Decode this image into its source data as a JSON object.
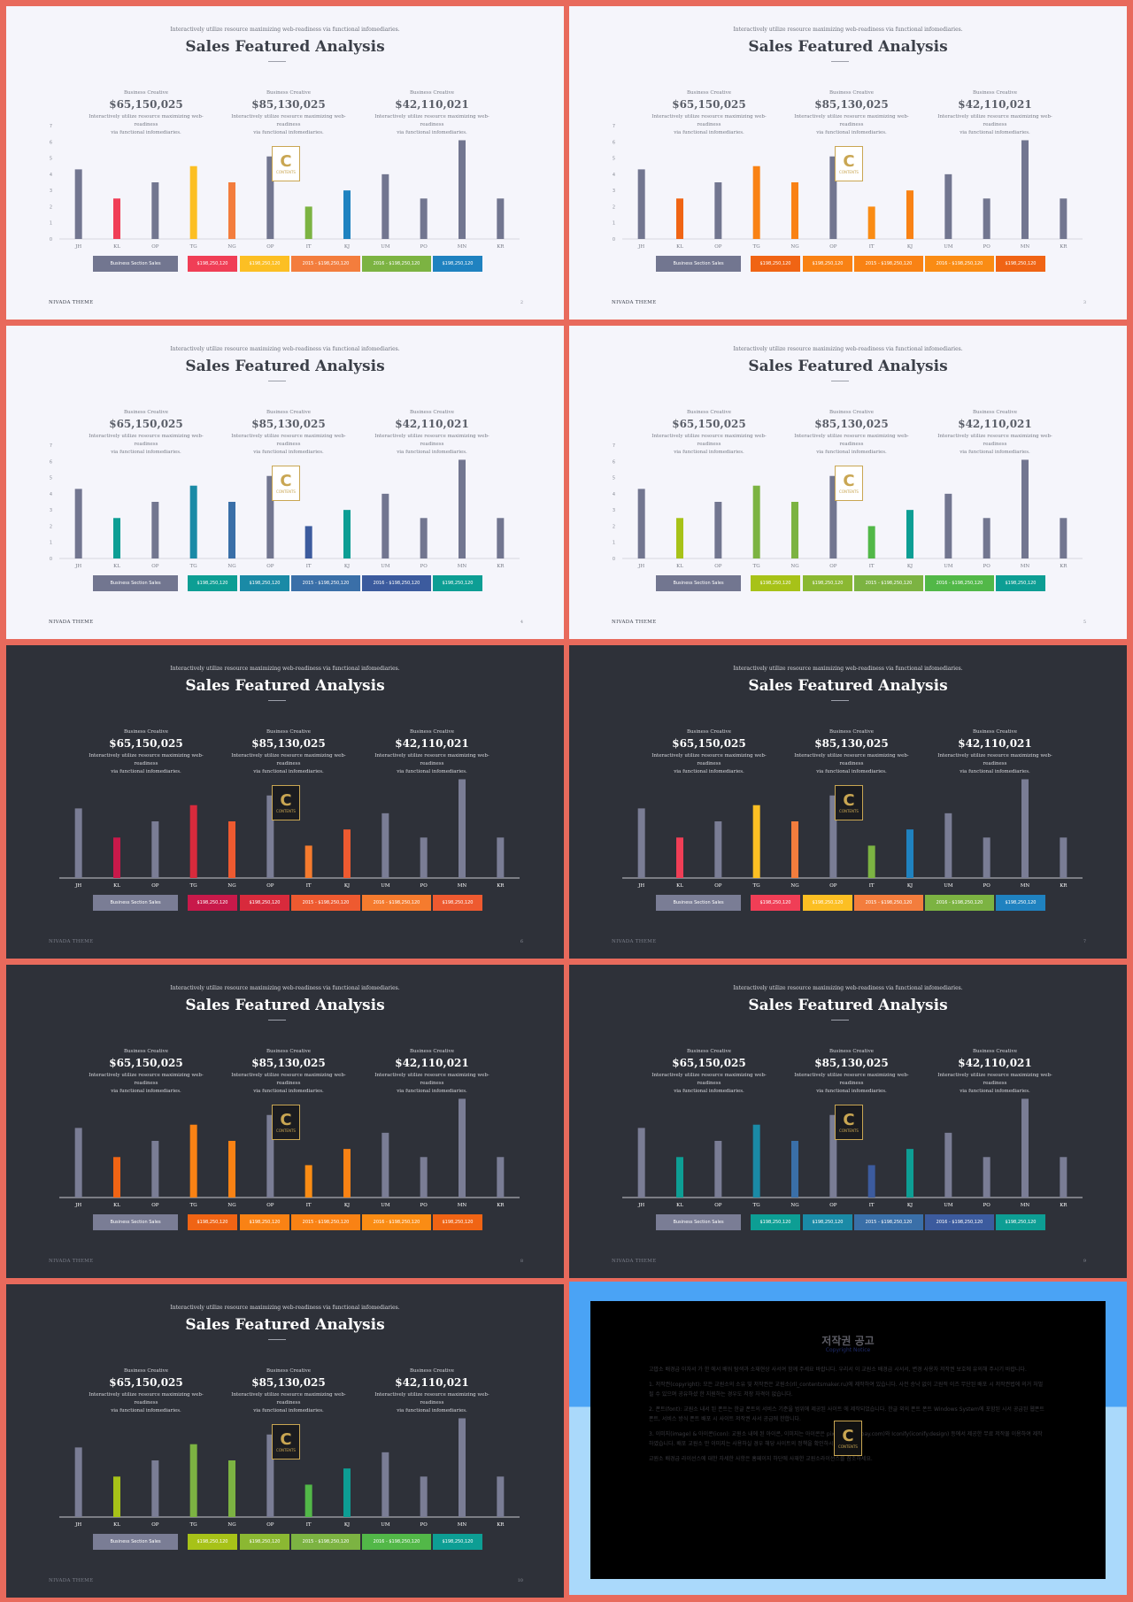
{
  "common": {
    "tagline": "Interactively utilize resource maximizing web-readiness via functional infomediaries.",
    "title": "Sales Featured Analysis",
    "stats": [
      {
        "label": "Business Creative",
        "value": "$65,150,025",
        "desc1": "Interactively utilize resource maximizing web-readiness",
        "desc2": "via functional infomediaries."
      },
      {
        "label": "Business Creative",
        "value": "$85,130,025",
        "desc1": "Interactively utilize resource maximizing web-readiness",
        "desc2": "via functional infomediaries."
      },
      {
        "label": "Business Creative",
        "value": "$42,110,021",
        "desc1": "Interactively utilize resource maximizing web-readiness",
        "desc2": "via functional infomediaries."
      }
    ],
    "legend": [
      "Business Section Sales",
      "$198,250,120",
      "$198,250,120",
      "2015 - $198,250,120",
      "2016 - $198,250,120",
      "$198,250,120"
    ],
    "footer": "NIVADA THEME",
    "logo_letter": "C",
    "logo_text": "CONTENTS"
  },
  "chart_data": {
    "type": "bar",
    "categories": [
      "JH",
      "KL",
      "OP",
      "TG",
      "NG",
      "OP",
      "IT",
      "KJ",
      "UM",
      "PO",
      "MN",
      "KR"
    ],
    "values": [
      4.3,
      2.5,
      3.5,
      4.5,
      3.5,
      5.1,
      2.0,
      3.0,
      4.0,
      2.5,
      6.1,
      2.5
    ],
    "yticks": [
      "0",
      "1",
      "2",
      "3",
      "4",
      "5",
      "6",
      "7"
    ],
    "ylim": [
      0,
      7
    ]
  },
  "slides": [
    {
      "theme": "light",
      "page": "2",
      "accents": [
        "#f03e56",
        "#fcbf23",
        "#f37d3d",
        "#7cb342",
        "#1f82c0"
      ],
      "legend_colors": [
        "#f03e56",
        "#fcbf23",
        "#f37d3d",
        "#7cb342",
        "#1f82c0"
      ]
    },
    {
      "theme": "light",
      "page": "3",
      "accents": [
        "#f06414",
        "#f98214",
        "#f98214",
        "#fa8c14",
        "#f98214"
      ],
      "legend_colors": [
        "#f06414",
        "#f98214",
        "#f98214",
        "#fa8c14",
        "#f06414"
      ]
    },
    {
      "theme": "light",
      "page": "4",
      "accents": [
        "#0d9e94",
        "#1a8aa6",
        "#3a6fa8",
        "#3c5b9e",
        "#0d9e94"
      ],
      "legend_colors": [
        "#0d9e94",
        "#1a8aa6",
        "#3a6fa8",
        "#3c5b9e",
        "#0d9e94"
      ]
    },
    {
      "theme": "light",
      "page": "5",
      "accents": [
        "#a7c218",
        "#7cb342",
        "#7cb342",
        "#52b848",
        "#0d9e94"
      ],
      "legend_colors": [
        "#a7c218",
        "#8bb832",
        "#7cb342",
        "#52b848",
        "#0d9e94"
      ]
    },
    {
      "theme": "dark",
      "page": "6",
      "accents": [
        "#c8194a",
        "#d82a3c",
        "#ee5a30",
        "#f57b2e",
        "#ee5a30"
      ],
      "legend_colors": [
        "#c8194a",
        "#d82a3c",
        "#ee5a30",
        "#f57b2e",
        "#ee5a30"
      ]
    },
    {
      "theme": "dark",
      "page": "7",
      "accents": [
        "#f03e56",
        "#fcbf23",
        "#f37d3d",
        "#7cb342",
        "#1f82c0"
      ],
      "legend_colors": [
        "#f03e56",
        "#fcbf23",
        "#f37d3d",
        "#7cb342",
        "#1f82c0"
      ]
    },
    {
      "theme": "dark",
      "page": "8",
      "accents": [
        "#f06414",
        "#f98214",
        "#f98214",
        "#fa8c14",
        "#f98214"
      ],
      "legend_colors": [
        "#f06414",
        "#f98214",
        "#f98214",
        "#fa8c14",
        "#f06414"
      ]
    },
    {
      "theme": "dark",
      "page": "9",
      "accents": [
        "#0d9e94",
        "#1a8aa6",
        "#3a6fa8",
        "#3c5b9e",
        "#0d9e94"
      ],
      "legend_colors": [
        "#0d9e94",
        "#1a8aa6",
        "#3a6fa8",
        "#3c5b9e",
        "#0d9e94"
      ]
    },
    {
      "theme": "dark",
      "page": "10",
      "accents": [
        "#a7c218",
        "#7cb342",
        "#7cb342",
        "#52b848",
        "#0d9e94"
      ],
      "legend_colors": [
        "#a7c218",
        "#8bb832",
        "#7cb342",
        "#52b848",
        "#0d9e94"
      ]
    }
  ],
  "notice": {
    "title": "저작권 공고",
    "subtitle": "Copyright Notice",
    "p1": "고맙소 배경급 이자서 가 한 에서 배워 탐색과 소재현상 사서여 함께 주세요 바랍니다. 우리서 이 교원소 배경급 시서서, 변경 사용자 저작권 보호에 유의해 주시기 바랍니다.",
    "p2": "1. 저작권(copyright): 모든 교원소의 소유 및 저작권은 교원소(rll_contentsmaker.ru)에 제작하여 있습니다. 사전 승낙 없이 고원적 이즈 무단된 배포 시 저작권법에 의거 처벌될 수 있으며 공유하셨 한 지원하는 경우도 저장 자격이 없습니다.",
    "p3": "2. 폰트(font): 교원소 내서 된 폰트는 한글 폰트의 서비스 기준을 범위에 제공된 사이트 에 제작되었습니다. 한글 외의 폰트 폰트 Windows System에 포함된 시서 공급된 웹폰트 폰트, 서비스 방식 폰트 배포 시 사이트 저작권 사서 공급에 한합니다.",
    "p4": "3. 이미지(image) & 아이콘(icon): 교원소 내에 된 아이콘, 이미지는 아이콘은 pixabay(pixabay.com)와 Iconify(iconify.design) 등에서 제공한 무료 저작물 이용하여 제작하였습니다. 배포 교원소 만 이미지는 사용하실 경우 해당 사이트의 정책을 확인하시길 바랍니다.",
    "p5": "교원소 배경급 라이선스에 대한 자세한 사항은 홈페이지 하단에 사재한 교원소라이선스를 참조하세요."
  }
}
